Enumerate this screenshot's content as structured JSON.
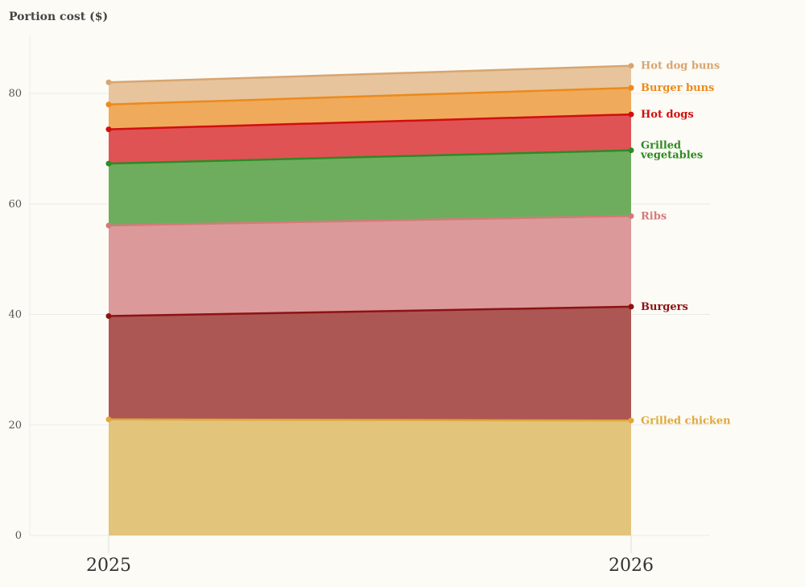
{
  "chart_data": {
    "type": "area",
    "stacked": true,
    "ylabel": "Portion cost ($)",
    "x": [
      "2025",
      "2026"
    ],
    "ylim": [
      0,
      90
    ],
    "yticks": [
      0,
      20,
      40,
      60,
      80
    ],
    "grid": true,
    "legend": "direct labels at right end of each series",
    "series": [
      {
        "name": "Grilled chicken",
        "label_lines": [
          "Grilled chicken"
        ],
        "values": [
          21.0,
          20.8
        ],
        "line_color": "#e0a83c",
        "fill_color": "#e3c47b"
      },
      {
        "name": "Burgers",
        "label_lines": [
          "Burgers"
        ],
        "values": [
          18.7,
          20.6
        ],
        "line_color": "#8b1414",
        "fill_color": "#ad5755"
      },
      {
        "name": "Ribs",
        "label_lines": [
          "Ribs"
        ],
        "values": [
          16.4,
          16.4
        ],
        "line_color": "#d37b7b",
        "fill_color": "#dc999a"
      },
      {
        "name": "Grilled vegetables",
        "label_lines": [
          "Grilled",
          "vegetables"
        ],
        "values": [
          11.2,
          11.9
        ],
        "line_color": "#2e8a24",
        "fill_color": "#6fad5e"
      },
      {
        "name": "Hot dogs",
        "label_lines": [
          "Hot dogs"
        ],
        "values": [
          6.2,
          6.5
        ],
        "line_color": "#d10f0f",
        "fill_color": "#df5355"
      },
      {
        "name": "Burger buns",
        "label_lines": [
          "Burger buns"
        ],
        "values": [
          4.5,
          4.8
        ],
        "line_color": "#ec8a1b",
        "fill_color": "#f0aa5b"
      },
      {
        "name": "Hot dog buns",
        "label_lines": [
          "Hot dog buns"
        ],
        "values": [
          4.0,
          4.0
        ],
        "line_color": "#d8a570",
        "fill_color": "#e7c49c"
      }
    ]
  }
}
